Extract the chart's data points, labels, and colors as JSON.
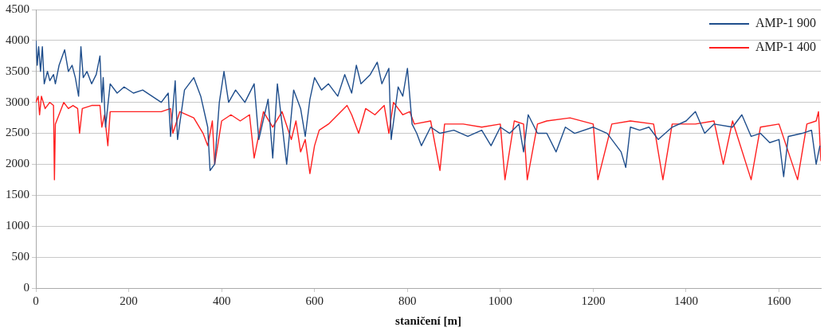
{
  "chart_data": {
    "type": "line",
    "xlabel": "staničení [m]",
    "xlim": [
      0,
      1690
    ],
    "xticks": [
      0,
      200,
      400,
      600,
      800,
      1000,
      1200,
      1400,
      1600
    ],
    "ylim": [
      0,
      4500
    ],
    "yticks": [
      0,
      500,
      1000,
      1500,
      2000,
      2500,
      3000,
      3500,
      4000,
      4500
    ],
    "grid": "y",
    "legend": "top right",
    "marker": "none",
    "line_style": "solid",
    "series": [
      {
        "name": "AMP-1 900",
        "color": "#1f4e8c",
        "x": [
          0,
          3,
          6,
          10,
          14,
          18,
          25,
          30,
          38,
          42,
          50,
          62,
          70,
          78,
          85,
          92,
          97,
          102,
          110,
          120,
          130,
          138,
          142,
          145,
          150,
          160,
          175,
          190,
          210,
          230,
          250,
          270,
          285,
          290,
          300,
          305,
          320,
          340,
          355,
          370,
          375,
          385,
          395,
          405,
          415,
          430,
          450,
          470,
          480,
          500,
          510,
          520,
          540,
          555,
          570,
          580,
          590,
          600,
          615,
          630,
          650,
          665,
          680,
          690,
          700,
          720,
          735,
          745,
          760,
          765,
          780,
          790,
          800,
          810,
          820,
          830,
          850,
          870,
          900,
          930,
          960,
          980,
          1000,
          1020,
          1040,
          1050,
          1060,
          1080,
          1100,
          1120,
          1140,
          1160,
          1200,
          1230,
          1260,
          1270,
          1280,
          1300,
          1320,
          1340,
          1370,
          1400,
          1420,
          1440,
          1460,
          1500,
          1520,
          1540,
          1560,
          1580,
          1600,
          1610,
          1620,
          1650,
          1670,
          1680,
          1688
        ],
        "values": [
          4000,
          3600,
          3900,
          3500,
          3900,
          3300,
          3500,
          3350,
          3450,
          3300,
          3600,
          3850,
          3500,
          3600,
          3400,
          3100,
          3900,
          3400,
          3500,
          3300,
          3450,
          3750,
          3000,
          3400,
          2600,
          3300,
          3150,
          3250,
          3150,
          3200,
          3100,
          3000,
          3150,
          2450,
          3350,
          2400,
          3200,
          3400,
          3100,
          2600,
          1900,
          2000,
          3000,
          3500,
          3000,
          3200,
          3000,
          3300,
          2400,
          3050,
          2100,
          3300,
          2000,
          3200,
          2900,
          2450,
          3050,
          3400,
          3200,
          3300,
          3100,
          3450,
          3150,
          3600,
          3300,
          3450,
          3650,
          3300,
          3550,
          2400,
          3250,
          3100,
          3550,
          2650,
          2500,
          2300,
          2600,
          2500,
          2550,
          2450,
          2550,
          2300,
          2600,
          2500,
          2650,
          2200,
          2800,
          2500,
          2500,
          2200,
          2600,
          2500,
          2600,
          2500,
          2200,
          1950,
          2600,
          2550,
          2600,
          2400,
          2600,
          2700,
          2850,
          2500,
          2650,
          2600,
          2800,
          2450,
          2500,
          2350,
          2400,
          1800,
          2450,
          2500,
          2550,
          2000,
          2300
        ]
      },
      {
        "name": "AMP-1 400",
        "color": "#ff2020",
        "x": [
          0,
          5,
          8,
          12,
          20,
          30,
          38,
          40,
          42,
          60,
          70,
          80,
          90,
          94,
          100,
          120,
          138,
          142,
          148,
          155,
          160,
          200,
          240,
          270,
          290,
          295,
          310,
          340,
          360,
          370,
          380,
          385,
          400,
          420,
          440,
          460,
          470,
          490,
          510,
          530,
          550,
          560,
          570,
          580,
          590,
          600,
          610,
          630,
          650,
          670,
          680,
          695,
          710,
          730,
          750,
          760,
          770,
          790,
          805,
          815,
          850,
          870,
          880,
          920,
          960,
          1000,
          1010,
          1030,
          1050,
          1058,
          1080,
          1100,
          1150,
          1200,
          1210,
          1240,
          1280,
          1330,
          1350,
          1370,
          1420,
          1460,
          1480,
          1500,
          1540,
          1560,
          1600,
          1640,
          1660,
          1680,
          1685,
          1690
        ],
        "values": [
          3000,
          3100,
          2800,
          3100,
          2900,
          3000,
          2950,
          1750,
          2650,
          3000,
          2900,
          2950,
          2900,
          2500,
          2900,
          2950,
          2950,
          2600,
          2800,
          2300,
          2850,
          2850,
          2850,
          2850,
          2900,
          2500,
          2850,
          2750,
          2500,
          2300,
          2700,
          2000,
          2700,
          2800,
          2700,
          2800,
          2100,
          2850,
          2600,
          2850,
          2400,
          2700,
          2200,
          2400,
          1850,
          2300,
          2550,
          2650,
          2800,
          2950,
          2800,
          2500,
          2900,
          2800,
          2950,
          2500,
          3000,
          2800,
          2850,
          2650,
          2700,
          1900,
          2650,
          2650,
          2600,
          2650,
          1750,
          2700,
          2650,
          1750,
          2650,
          2700,
          2750,
          2650,
          1750,
          2650,
          2700,
          2650,
          1750,
          2650,
          2650,
          2700,
          2000,
          2700,
          1750,
          2600,
          2650,
          1750,
          2650,
          2700,
          2850,
          2050
        ]
      }
    ]
  }
}
